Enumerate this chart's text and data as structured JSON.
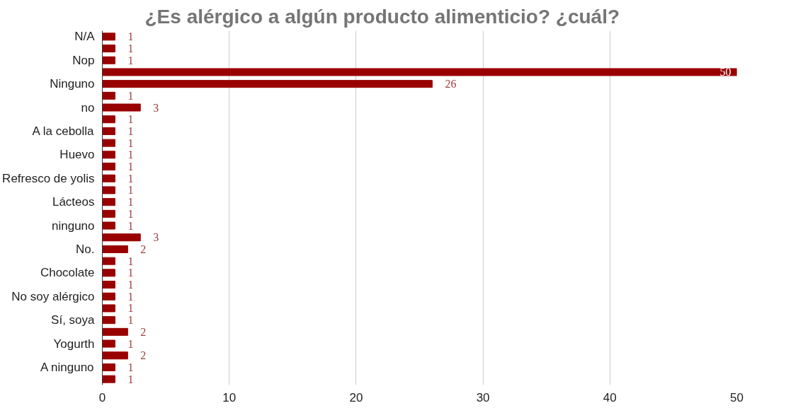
{
  "chart_data": {
    "type": "bar",
    "orientation": "horizontal",
    "title": "¿Es alérgico a algún producto alimenticio? ¿cuál?",
    "categories": [
      "N/A",
      null,
      "Nop",
      null,
      "Ninguno",
      null,
      "no",
      null,
      "A la cebolla",
      null,
      "Huevo",
      null,
      "Refresco de yolis",
      null,
      "Lácteos",
      null,
      "ninguno",
      null,
      "No.",
      null,
      "Chocolate",
      null,
      "No soy alérgico",
      null,
      "Sí, soya",
      null,
      "Yogurth",
      null,
      "A ninguno",
      null
    ],
    "values": [
      1,
      1,
      1,
      50,
      26,
      1,
      3,
      1,
      1,
      1,
      1,
      1,
      1,
      1,
      1,
      1,
      1,
      3,
      2,
      1,
      1,
      1,
      1,
      1,
      1,
      2,
      1,
      2,
      1,
      1
    ],
    "color": "#990000",
    "xlim": [
      0,
      50
    ],
    "xticks": [
      0,
      10,
      20,
      30,
      40,
      50
    ],
    "grid": "x",
    "data_labels": true,
    "legend": false
  }
}
